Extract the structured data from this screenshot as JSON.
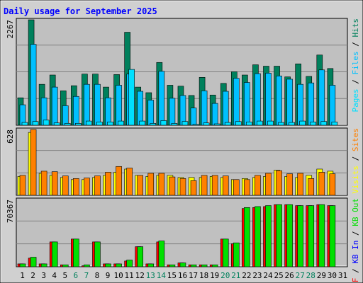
{
  "chart_data": {
    "type": "bar",
    "title": "Daily usage for September 2025",
    "colors": {
      "hits": "#00805c",
      "files": "#00c0ff",
      "pages": "#00e0ff",
      "visits": "#ffff00",
      "sites": "#ff8000",
      "kbin": "#ff0000",
      "kbout": "#00e000",
      "background": "#c0c0c0",
      "frame": "#d0d0d0",
      "title": "#0000ff",
      "weekend_label": "#00805c",
      "weekday_label": "#000000"
    },
    "x": {
      "days": [
        "1",
        "2",
        "3",
        "4",
        "5",
        "6",
        "7",
        "8",
        "9",
        "10",
        "11",
        "12",
        "13",
        "14",
        "15",
        "16",
        "17",
        "18",
        "19",
        "20",
        "21",
        "22",
        "23",
        "24",
        "25",
        "26",
        "27",
        "28",
        "29",
        "30",
        "31"
      ],
      "weekend": [
        false,
        false,
        false,
        false,
        false,
        true,
        true,
        false,
        false,
        false,
        false,
        false,
        true,
        true,
        false,
        false,
        false,
        false,
        false,
        true,
        true,
        false,
        false,
        false,
        false,
        false,
        true,
        true,
        false,
        false,
        false
      ]
    },
    "panels": [
      {
        "id": "hits-files-pages",
        "ymax": 2267,
        "ymax_label": "2267",
        "legend": [
          {
            "label": "Pages",
            "color": "#00e0ff"
          },
          {
            "label": "Files",
            "color": "#00c0ff"
          },
          {
            "label": "Hits",
            "color": "#00805c"
          }
        ],
        "series": [
          {
            "name": "Hits",
            "color": "#00805c",
            "values": [
              590,
              2267,
              880,
              1080,
              740,
              850,
              1100,
              1100,
              820,
              1090,
              2000,
              820,
              700,
              1350,
              860,
              840,
              640,
              1030,
              650,
              900,
              1150,
              1080,
              1300,
              1270,
              1270,
              1040,
              1320,
              1050,
              1510,
              1220,
              0
            ]
          },
          {
            "name": "Files",
            "color": "#00c0ff",
            "values": [
              440,
              1740,
              590,
              820,
              420,
              620,
              880,
              880,
              590,
              860,
              1100,
              730,
              540,
              1160,
              580,
              640,
              370,
              740,
              470,
              730,
              1010,
              920,
              1110,
              1120,
              1060,
              990,
              880,
              910,
              1190,
              860,
              0
            ]
          },
          {
            "name": "Pages",
            "color": "#00e0ff",
            "values": [
              60,
              80,
              110,
              50,
              40,
              40,
              90,
              70,
              70,
              90,
              1200,
              90,
              40,
              100,
              40,
              80,
              20,
              50,
              30,
              60,
              80,
              70,
              90,
              90,
              60,
              60,
              90,
              70,
              80,
              70,
              0
            ]
          }
        ]
      },
      {
        "id": "visits-sites",
        "ymax": 628,
        "ymax_label": "628",
        "legend": [
          {
            "label": "Visits",
            "color": "#ffff00"
          },
          {
            "label": "Sites",
            "color": "#ff8000"
          }
        ],
        "series": [
          {
            "name": "Visits",
            "color": "#ffff00",
            "values": [
              180,
              600,
              210,
              190,
              170,
              150,
              150,
              170,
              190,
              220,
              250,
              190,
              180,
              190,
              190,
              170,
              170,
              170,
              180,
              170,
              150,
              160,
              170,
              180,
              240,
              180,
              170,
              190,
              250,
              230,
              0
            ]
          },
          {
            "name": "Sites",
            "color": "#ff8000",
            "values": [
              190,
              628,
              230,
              225,
              185,
              160,
              165,
              185,
              220,
              275,
              260,
              190,
              210,
              210,
              175,
              160,
              140,
              190,
              190,
              185,
              150,
              150,
              190,
              210,
              235,
              205,
              210,
              160,
              220,
              205,
              0
            ]
          }
        ]
      },
      {
        "id": "kbin-kbout",
        "ymax": 70367,
        "ymax_label": "70367",
        "legend": [
          {
            "label": "KB F",
            "color": "#ff0000"
          },
          {
            "label": "KB In",
            "color": "#0000ff"
          },
          {
            "label": "KB Out",
            "color": "#00e000"
          }
        ],
        "series": [
          {
            "name": "KB F",
            "color": "#ff0000",
            "values": [
              3000,
              9000,
              3000,
              26000,
              2000,
              29000,
              1000,
              26000,
              3000,
              3000,
              6000,
              21000,
              3000,
              26000,
              2000,
              4000,
              2000,
              2000,
              2000,
              29000,
              24000,
              61000,
              62000,
              63000,
              65000,
              65000,
              64000,
              64000,
              65000,
              64000,
              0
            ]
          },
          {
            "name": "KB Out",
            "color": "#00e000",
            "values": [
              3000,
              10000,
              3000,
              26000,
              2000,
              29000,
              2000,
              26000,
              3000,
              3000,
              7000,
              21000,
              3000,
              27000,
              2000,
              4000,
              2000,
              2000,
              2000,
              29000,
              25000,
              62000,
              63000,
              64000,
              65000,
              65000,
              64000,
              64000,
              65000,
              64000,
              0
            ]
          }
        ]
      }
    ]
  }
}
